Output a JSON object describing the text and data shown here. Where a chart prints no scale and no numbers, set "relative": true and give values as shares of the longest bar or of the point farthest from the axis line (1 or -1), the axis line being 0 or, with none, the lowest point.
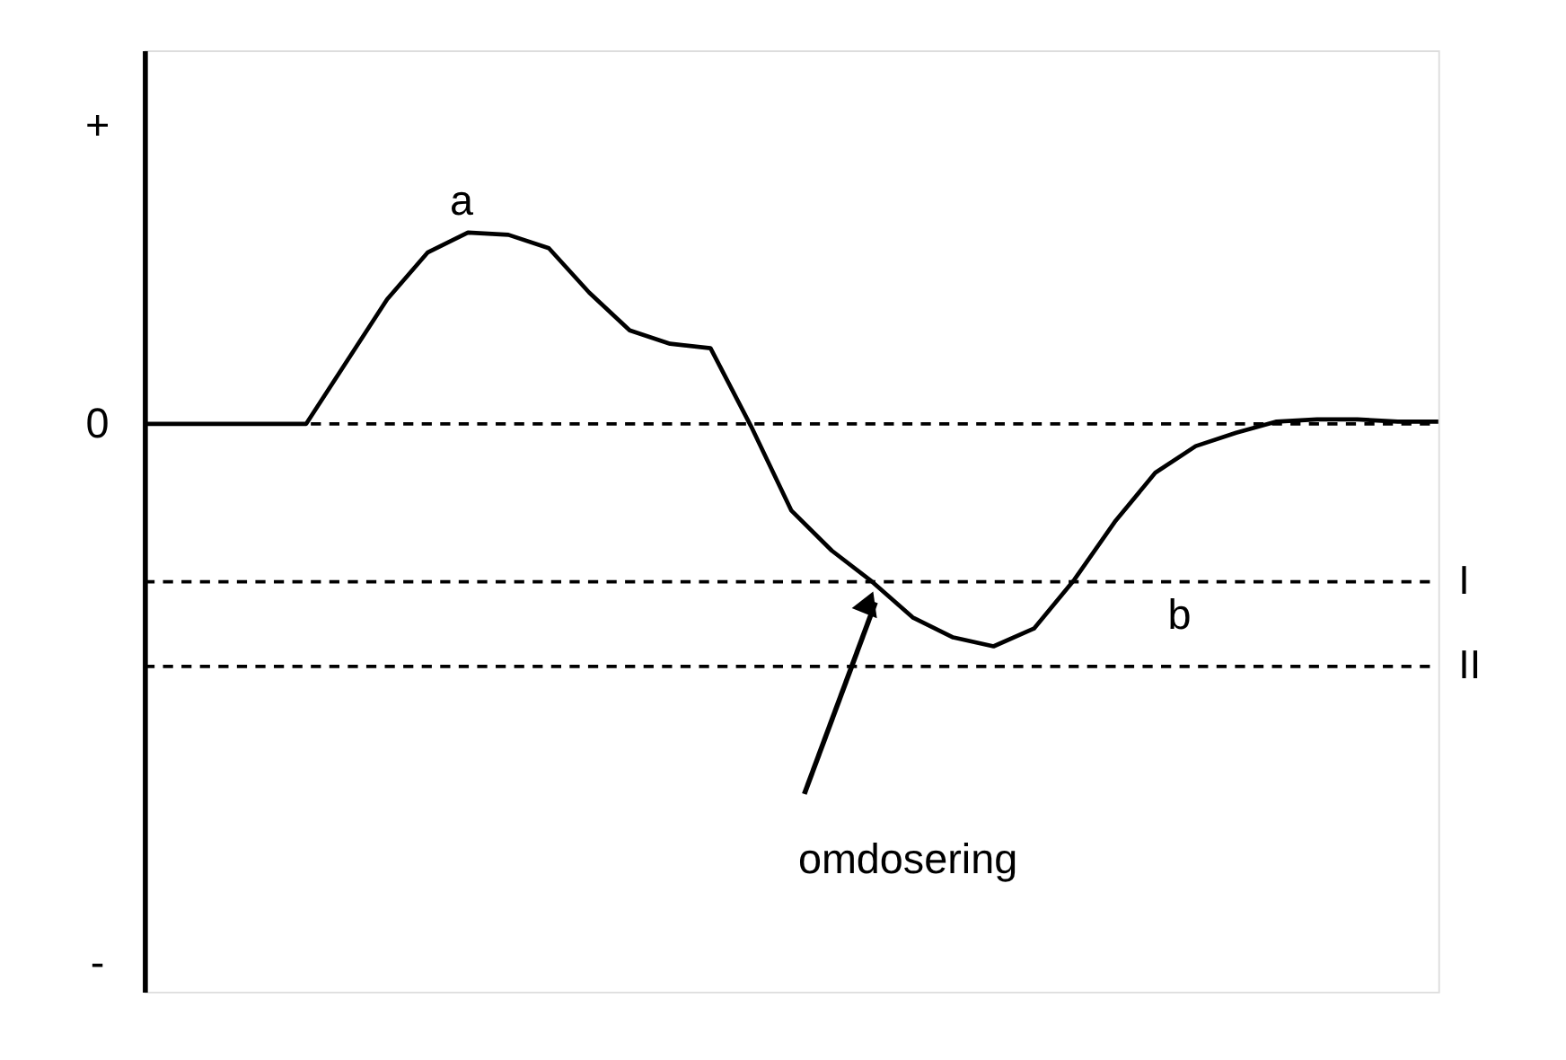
{
  "chart_data": {
    "type": "line",
    "relative": true,
    "categories": [
      null,
      null,
      null,
      null,
      null,
      null,
      null,
      null,
      null,
      null,
      null,
      null,
      null,
      null,
      null,
      null,
      null,
      null,
      null,
      null,
      null,
      null,
      null,
      null,
      null,
      null,
      null,
      null,
      null,
      null,
      null,
      null,
      null
    ],
    "series": [
      {
        "color": "#000000",
        "values": [
          0,
          0,
          0,
          0,
          0,
          0.28,
          0.56,
          0.77,
          0.86,
          0.85,
          0.79,
          0.59,
          0.42,
          0.36,
          0.34,
          -0.01,
          -0.39,
          -0.57,
          -0.71,
          -0.87,
          -0.96,
          -1,
          -0.92,
          -0.7,
          -0.44,
          -0.22,
          -0.1,
          -0.04,
          0.01,
          0.02,
          0.02,
          0.01,
          0.01
        ]
      }
    ],
    "tick_labels": false,
    "grid": false,
    "marker": "none",
    "line_style": "solid",
    "ref_lines": [
      {
        "axis": "y",
        "value": 0,
        "line_style": "dashed",
        "color": "#000000"
      },
      {
        "axis": "y",
        "value": -0.71,
        "label": "I",
        "line_style": "dashed",
        "color": "#000000"
      },
      {
        "axis": "y",
        "value": -1.09,
        "label": "II",
        "line_style": "dashed",
        "color": "#000000"
      }
    ],
    "annotations": [
      "+",
      "0",
      "-",
      "a",
      "b",
      "omdosering"
    ]
  }
}
